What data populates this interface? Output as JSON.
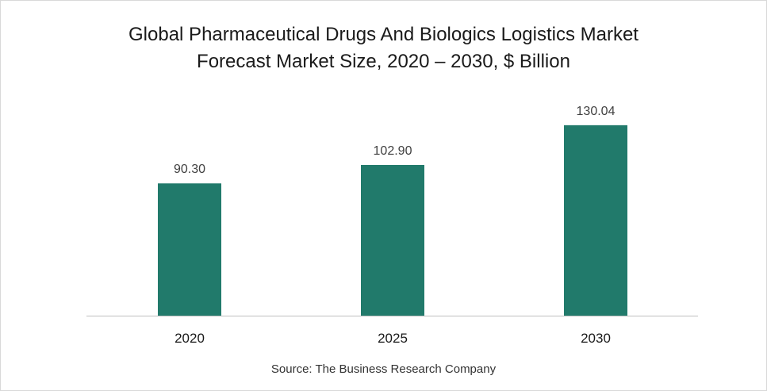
{
  "chart_data": {
    "type": "bar",
    "title_lines": [
      "Global Pharmaceutical Drugs And Biologics Logistics Market",
      "Forecast Market Size, 2020 – 2030, $ Billion"
    ],
    "categories": [
      "2020",
      "2025",
      "2030"
    ],
    "values": [
      90.3,
      102.9,
      130.04
    ],
    "value_labels": [
      "90.30",
      "102.90",
      "130.04"
    ],
    "bar_color": "#217a6b",
    "ylim": [
      0,
      150
    ],
    "grid": false,
    "legend": "none"
  },
  "source": "Source: The Business Research Company"
}
